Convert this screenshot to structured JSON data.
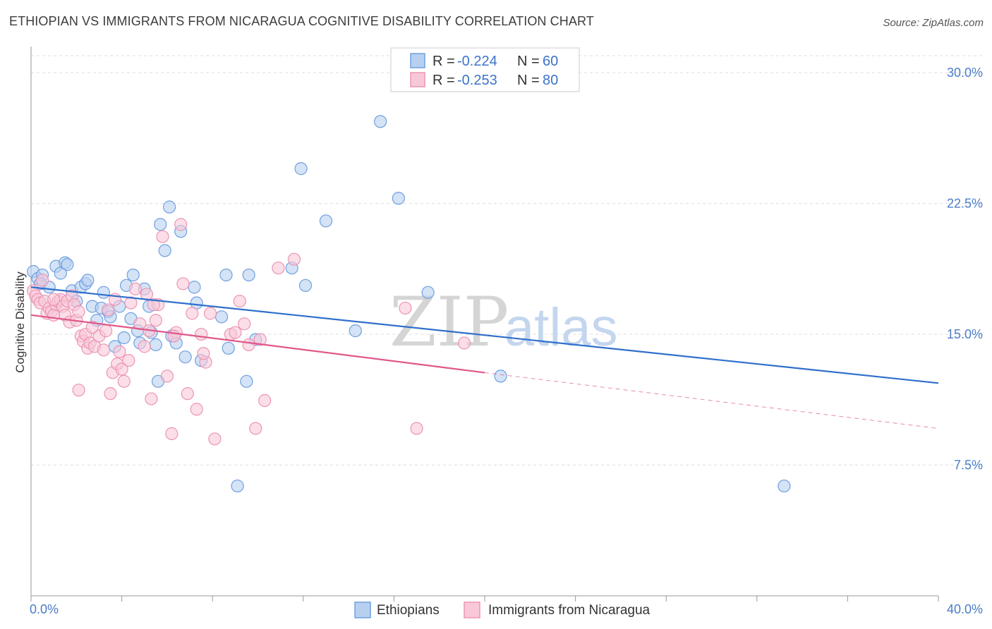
{
  "title": "ETHIOPIAN VS IMMIGRANTS FROM NICARAGUA COGNITIVE DISABILITY CORRELATION CHART",
  "source": "Source: ZipAtlas.com",
  "watermark": {
    "zip": "ZIP",
    "atlas": "atlas"
  },
  "chart_data": {
    "type": "scatter",
    "title": "ETHIOPIAN VS IMMIGRANTS FROM NICARAGUA COGNITIVE DISABILITY CORRELATION CHART",
    "xlabel": "",
    "ylabel": "Cognitive Disability",
    "xlim": [
      0,
      40
    ],
    "ylim": [
      0,
      31.5
    ],
    "x_tick_labels": {
      "min": "0.0%",
      "max": "40.0%"
    },
    "y_ticks": [
      7.5,
      15.0,
      22.5,
      30.0
    ],
    "y_tick_labels": [
      "7.5%",
      "15.0%",
      "22.5%",
      "30.0%"
    ],
    "grid": true,
    "legend_placement": "top-center",
    "stats": [
      {
        "r_label": "R = ",
        "r_value": "-0.224",
        "n_label": "N = ",
        "n_value": "60"
      },
      {
        "r_label": "R = ",
        "r_value": "-0.253",
        "n_label": "N = ",
        "n_value": "80"
      }
    ],
    "series": [
      {
        "name": "Ethiopians",
        "color": "#6fa0e0",
        "fill": "#b8d0f0",
        "line_color": "#2f6fcc",
        "trend": {
          "x0": 0,
          "y0": 17.7,
          "x1": 40,
          "y1": 12.2
        },
        "points": [
          [
            0.1,
            18.6
          ],
          [
            0.3,
            18.2
          ],
          [
            0.5,
            18.4
          ],
          [
            0.4,
            17.9
          ],
          [
            0.8,
            17.7
          ],
          [
            1.1,
            18.9
          ],
          [
            1.3,
            18.5
          ],
          [
            1.5,
            19.1
          ],
          [
            1.6,
            19.0
          ],
          [
            1.8,
            17.5
          ],
          [
            2.0,
            16.9
          ],
          [
            2.2,
            17.7
          ],
          [
            2.4,
            17.9
          ],
          [
            2.5,
            18.1
          ],
          [
            2.7,
            16.6
          ],
          [
            2.9,
            15.8
          ],
          [
            3.1,
            16.5
          ],
          [
            3.2,
            17.4
          ],
          [
            3.4,
            16.3
          ],
          [
            3.5,
            16.0
          ],
          [
            3.7,
            14.3
          ],
          [
            3.9,
            16.6
          ],
          [
            4.1,
            14.8
          ],
          [
            4.2,
            17.8
          ],
          [
            4.4,
            15.9
          ],
          [
            4.5,
            18.4
          ],
          [
            4.7,
            15.2
          ],
          [
            4.8,
            14.5
          ],
          [
            5.0,
            17.6
          ],
          [
            5.2,
            16.6
          ],
          [
            5.3,
            15.1
          ],
          [
            5.5,
            14.4
          ],
          [
            5.6,
            12.3
          ],
          [
            5.7,
            21.3
          ],
          [
            5.9,
            19.8
          ],
          [
            6.1,
            22.3
          ],
          [
            6.2,
            14.9
          ],
          [
            6.4,
            14.5
          ],
          [
            6.6,
            20.9
          ],
          [
            6.8,
            13.7
          ],
          [
            7.2,
            17.7
          ],
          [
            7.3,
            16.8
          ],
          [
            7.5,
            13.5
          ],
          [
            8.4,
            16.0
          ],
          [
            8.6,
            18.4
          ],
          [
            8.7,
            14.2
          ],
          [
            9.1,
            6.3
          ],
          [
            9.5,
            12.3
          ],
          [
            9.6,
            18.4
          ],
          [
            9.9,
            14.7
          ],
          [
            11.5,
            18.8
          ],
          [
            11.9,
            24.5
          ],
          [
            12.1,
            17.8
          ],
          [
            13.0,
            21.5
          ],
          [
            14.3,
            15.2
          ],
          [
            15.4,
            27.2
          ],
          [
            16.2,
            22.8
          ],
          [
            17.5,
            17.4
          ],
          [
            20.7,
            12.6
          ],
          [
            33.2,
            6.3
          ]
        ]
      },
      {
        "name": "Immigrants from Nicaragua",
        "color": "#ec95b3",
        "fill": "#f8c8d8",
        "line_color": "#e0578a",
        "trend": {
          "x0": 0,
          "y0": 16.1,
          "x1": 20,
          "y1": 12.8
        },
        "trend_extension": {
          "x0": 20,
          "y0": 12.8,
          "x1": 40,
          "y1": 9.6
        },
        "points": [
          [
            0.1,
            17.5
          ],
          [
            0.2,
            17.2
          ],
          [
            0.3,
            17.0
          ],
          [
            0.4,
            16.8
          ],
          [
            0.6,
            16.9
          ],
          [
            0.7,
            16.2
          ],
          [
            0.8,
            16.5
          ],
          [
            0.9,
            16.3
          ],
          [
            1.0,
            16.1
          ],
          [
            1.1,
            16.7
          ],
          [
            1.2,
            16.9
          ],
          [
            1.3,
            17.0
          ],
          [
            1.4,
            16.6
          ],
          [
            1.5,
            16.1
          ],
          [
            1.6,
            16.9
          ],
          [
            1.7,
            15.7
          ],
          [
            1.8,
            17.2
          ],
          [
            1.9,
            16.7
          ],
          [
            2.0,
            15.8
          ],
          [
            2.1,
            16.3
          ],
          [
            2.2,
            14.9
          ],
          [
            2.3,
            14.6
          ],
          [
            2.4,
            15.0
          ],
          [
            2.5,
            14.2
          ],
          [
            2.6,
            14.5
          ],
          [
            2.8,
            14.3
          ],
          [
            3.0,
            14.9
          ],
          [
            3.2,
            14.1
          ],
          [
            3.3,
            15.2
          ],
          [
            3.4,
            16.4
          ],
          [
            3.6,
            12.8
          ],
          [
            3.8,
            13.3
          ],
          [
            3.9,
            14.0
          ],
          [
            4.1,
            12.3
          ],
          [
            4.3,
            13.5
          ],
          [
            4.4,
            16.8
          ],
          [
            4.6,
            17.6
          ],
          [
            4.8,
            15.6
          ],
          [
            5.0,
            14.3
          ],
          [
            5.1,
            17.3
          ],
          [
            5.2,
            15.2
          ],
          [
            5.3,
            11.3
          ],
          [
            5.5,
            15.8
          ],
          [
            5.6,
            16.7
          ],
          [
            5.8,
            20.6
          ],
          [
            6.0,
            12.6
          ],
          [
            6.2,
            9.3
          ],
          [
            6.4,
            15.1
          ],
          [
            6.6,
            21.3
          ],
          [
            6.7,
            17.9
          ],
          [
            6.9,
            11.6
          ],
          [
            7.1,
            16.2
          ],
          [
            7.3,
            10.7
          ],
          [
            7.5,
            15.0
          ],
          [
            7.7,
            13.4
          ],
          [
            7.9,
            16.2
          ],
          [
            8.1,
            9.0
          ],
          [
            8.8,
            15.0
          ],
          [
            9.0,
            15.1
          ],
          [
            9.2,
            16.9
          ],
          [
            9.6,
            14.4
          ],
          [
            9.9,
            9.6
          ],
          [
            10.1,
            14.7
          ],
          [
            10.3,
            11.2
          ],
          [
            10.9,
            18.8
          ],
          [
            11.6,
            19.3
          ],
          [
            16.5,
            16.5
          ],
          [
            17.0,
            9.6
          ],
          [
            19.1,
            14.5
          ],
          [
            3.5,
            11.6
          ],
          [
            4.0,
            13.0
          ],
          [
            2.1,
            11.8
          ],
          [
            0.5,
            18.1
          ],
          [
            1.0,
            17.0
          ],
          [
            2.7,
            15.4
          ],
          [
            3.7,
            17.0
          ],
          [
            5.4,
            16.7
          ],
          [
            6.3,
            14.9
          ],
          [
            7.6,
            13.9
          ],
          [
            9.4,
            15.6
          ]
        ]
      }
    ]
  }
}
